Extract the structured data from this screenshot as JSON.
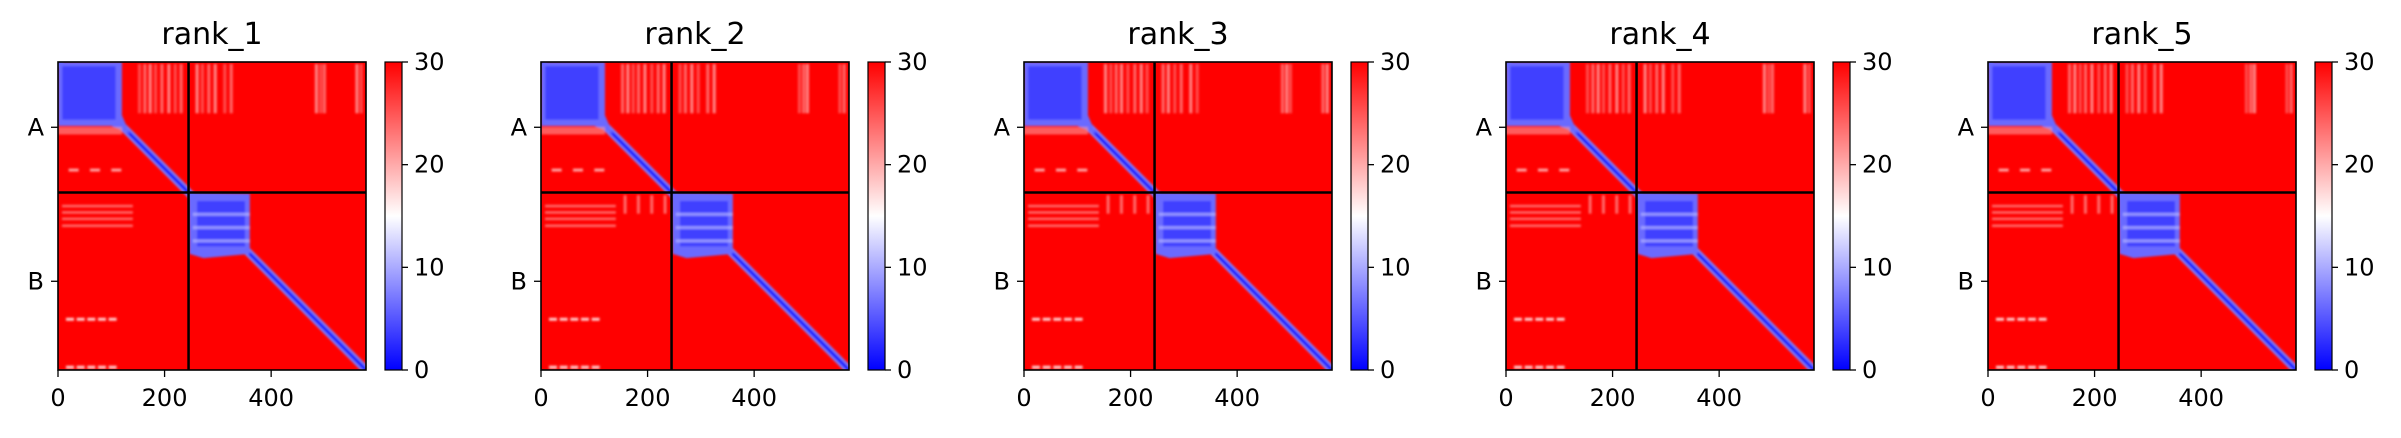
{
  "chart_data": [
    {
      "type": "heatmap",
      "title": "rank_1",
      "x_ticks": [
        "0",
        "200",
        "400"
      ],
      "x_tick_values": [
        0,
        200,
        400
      ],
      "x_range": [
        0,
        578
      ],
      "y_range": [
        0,
        578
      ],
      "chain_labels": [
        "A",
        "B"
      ],
      "chain_lengths": [
        245,
        333
      ],
      "colorbar": {
        "ticks": [
          "0",
          "10",
          "20",
          "30"
        ],
        "tick_values": [
          0,
          10,
          20,
          30
        ],
        "range": [
          0,
          30
        ],
        "colors": [
          "#0000ff",
          "#ffffff",
          "#ff0000"
        ]
      },
      "variant": 0
    },
    {
      "type": "heatmap",
      "title": "rank_2",
      "x_ticks": [
        "0",
        "200",
        "400"
      ],
      "x_tick_values": [
        0,
        200,
        400
      ],
      "x_range": [
        0,
        578
      ],
      "y_range": [
        0,
        578
      ],
      "chain_labels": [
        "A",
        "B"
      ],
      "chain_lengths": [
        245,
        333
      ],
      "colorbar": {
        "ticks": [
          "0",
          "10",
          "20",
          "30"
        ],
        "tick_values": [
          0,
          10,
          20,
          30
        ],
        "range": [
          0,
          30
        ],
        "colors": [
          "#0000ff",
          "#ffffff",
          "#ff0000"
        ]
      },
      "variant": 1
    },
    {
      "type": "heatmap",
      "title": "rank_3",
      "x_ticks": [
        "0",
        "200",
        "400"
      ],
      "x_tick_values": [
        0,
        200,
        400
      ],
      "x_range": [
        0,
        578
      ],
      "y_range": [
        0,
        578
      ],
      "chain_labels": [
        "A",
        "B"
      ],
      "chain_lengths": [
        245,
        333
      ],
      "colorbar": {
        "ticks": [
          "0",
          "10",
          "20",
          "30"
        ],
        "tick_values": [
          0,
          10,
          20,
          30
        ],
        "range": [
          0,
          30
        ],
        "colors": [
          "#0000ff",
          "#ffffff",
          "#ff0000"
        ]
      },
      "variant": 2
    },
    {
      "type": "heatmap",
      "title": "rank_4",
      "x_ticks": [
        "0",
        "200",
        "400"
      ],
      "x_tick_values": [
        0,
        200,
        400
      ],
      "x_range": [
        0,
        578
      ],
      "y_range": [
        0,
        578
      ],
      "chain_labels": [
        "A",
        "B"
      ],
      "chain_lengths": [
        245,
        333
      ],
      "colorbar": {
        "ticks": [
          "0",
          "10",
          "20",
          "30"
        ],
        "tick_values": [
          0,
          10,
          20,
          30
        ],
        "range": [
          0,
          30
        ],
        "colors": [
          "#0000ff",
          "#ffffff",
          "#ff0000"
        ]
      },
      "variant": 3
    },
    {
      "type": "heatmap",
      "title": "rank_5",
      "x_ticks": [
        "0",
        "200",
        "400"
      ],
      "x_tick_values": [
        0,
        200,
        400
      ],
      "x_range": [
        0,
        578
      ],
      "y_range": [
        0,
        578
      ],
      "chain_labels": [
        "A",
        "B"
      ],
      "chain_lengths": [
        245,
        333
      ],
      "colorbar": {
        "ticks": [
          "0",
          "10",
          "20",
          "30"
        ],
        "tick_values": [
          0,
          10,
          20,
          30
        ],
        "range": [
          0,
          30
        ],
        "colors": [
          "#0000ff",
          "#ffffff",
          "#ff0000"
        ]
      },
      "variant": 4
    }
  ]
}
